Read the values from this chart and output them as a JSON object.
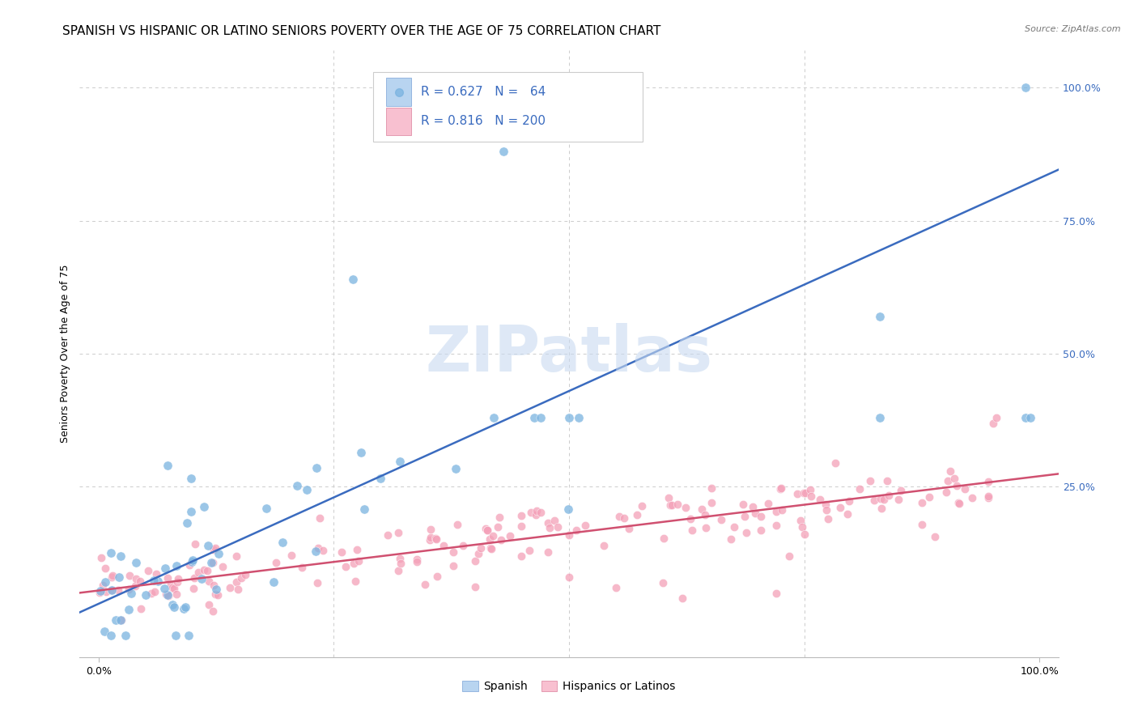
{
  "title": "SPANISH VS HISPANIC OR LATINO SENIORS POVERTY OVER THE AGE OF 75 CORRELATION CHART",
  "source": "Source: ZipAtlas.com",
  "ylabel": "Seniors Poverty Over the Age of 75",
  "blue_color": "#7ab3e0",
  "blue_edge": "#5b9bd5",
  "pink_color": "#f4a0b8",
  "pink_edge": "#e07090",
  "blue_line_color": "#3a6bbf",
  "pink_line_color": "#d05070",
  "legend_blue_fill": "#b8d4f0",
  "legend_blue_edge": "#8aaedc",
  "legend_pink_fill": "#f8c0d0",
  "legend_pink_edge": "#e090a8",
  "watermark": "ZIPatlas",
  "watermark_color": "#c8daf0",
  "background_color": "#ffffff",
  "grid_color": "#cccccc",
  "title_fontsize": 11,
  "right_tick_color": "#3a6bbf",
  "blue_line_intercept": 0.03,
  "blue_line_slope": 0.8,
  "pink_line_intercept": 0.055,
  "pink_line_slope": 0.215
}
